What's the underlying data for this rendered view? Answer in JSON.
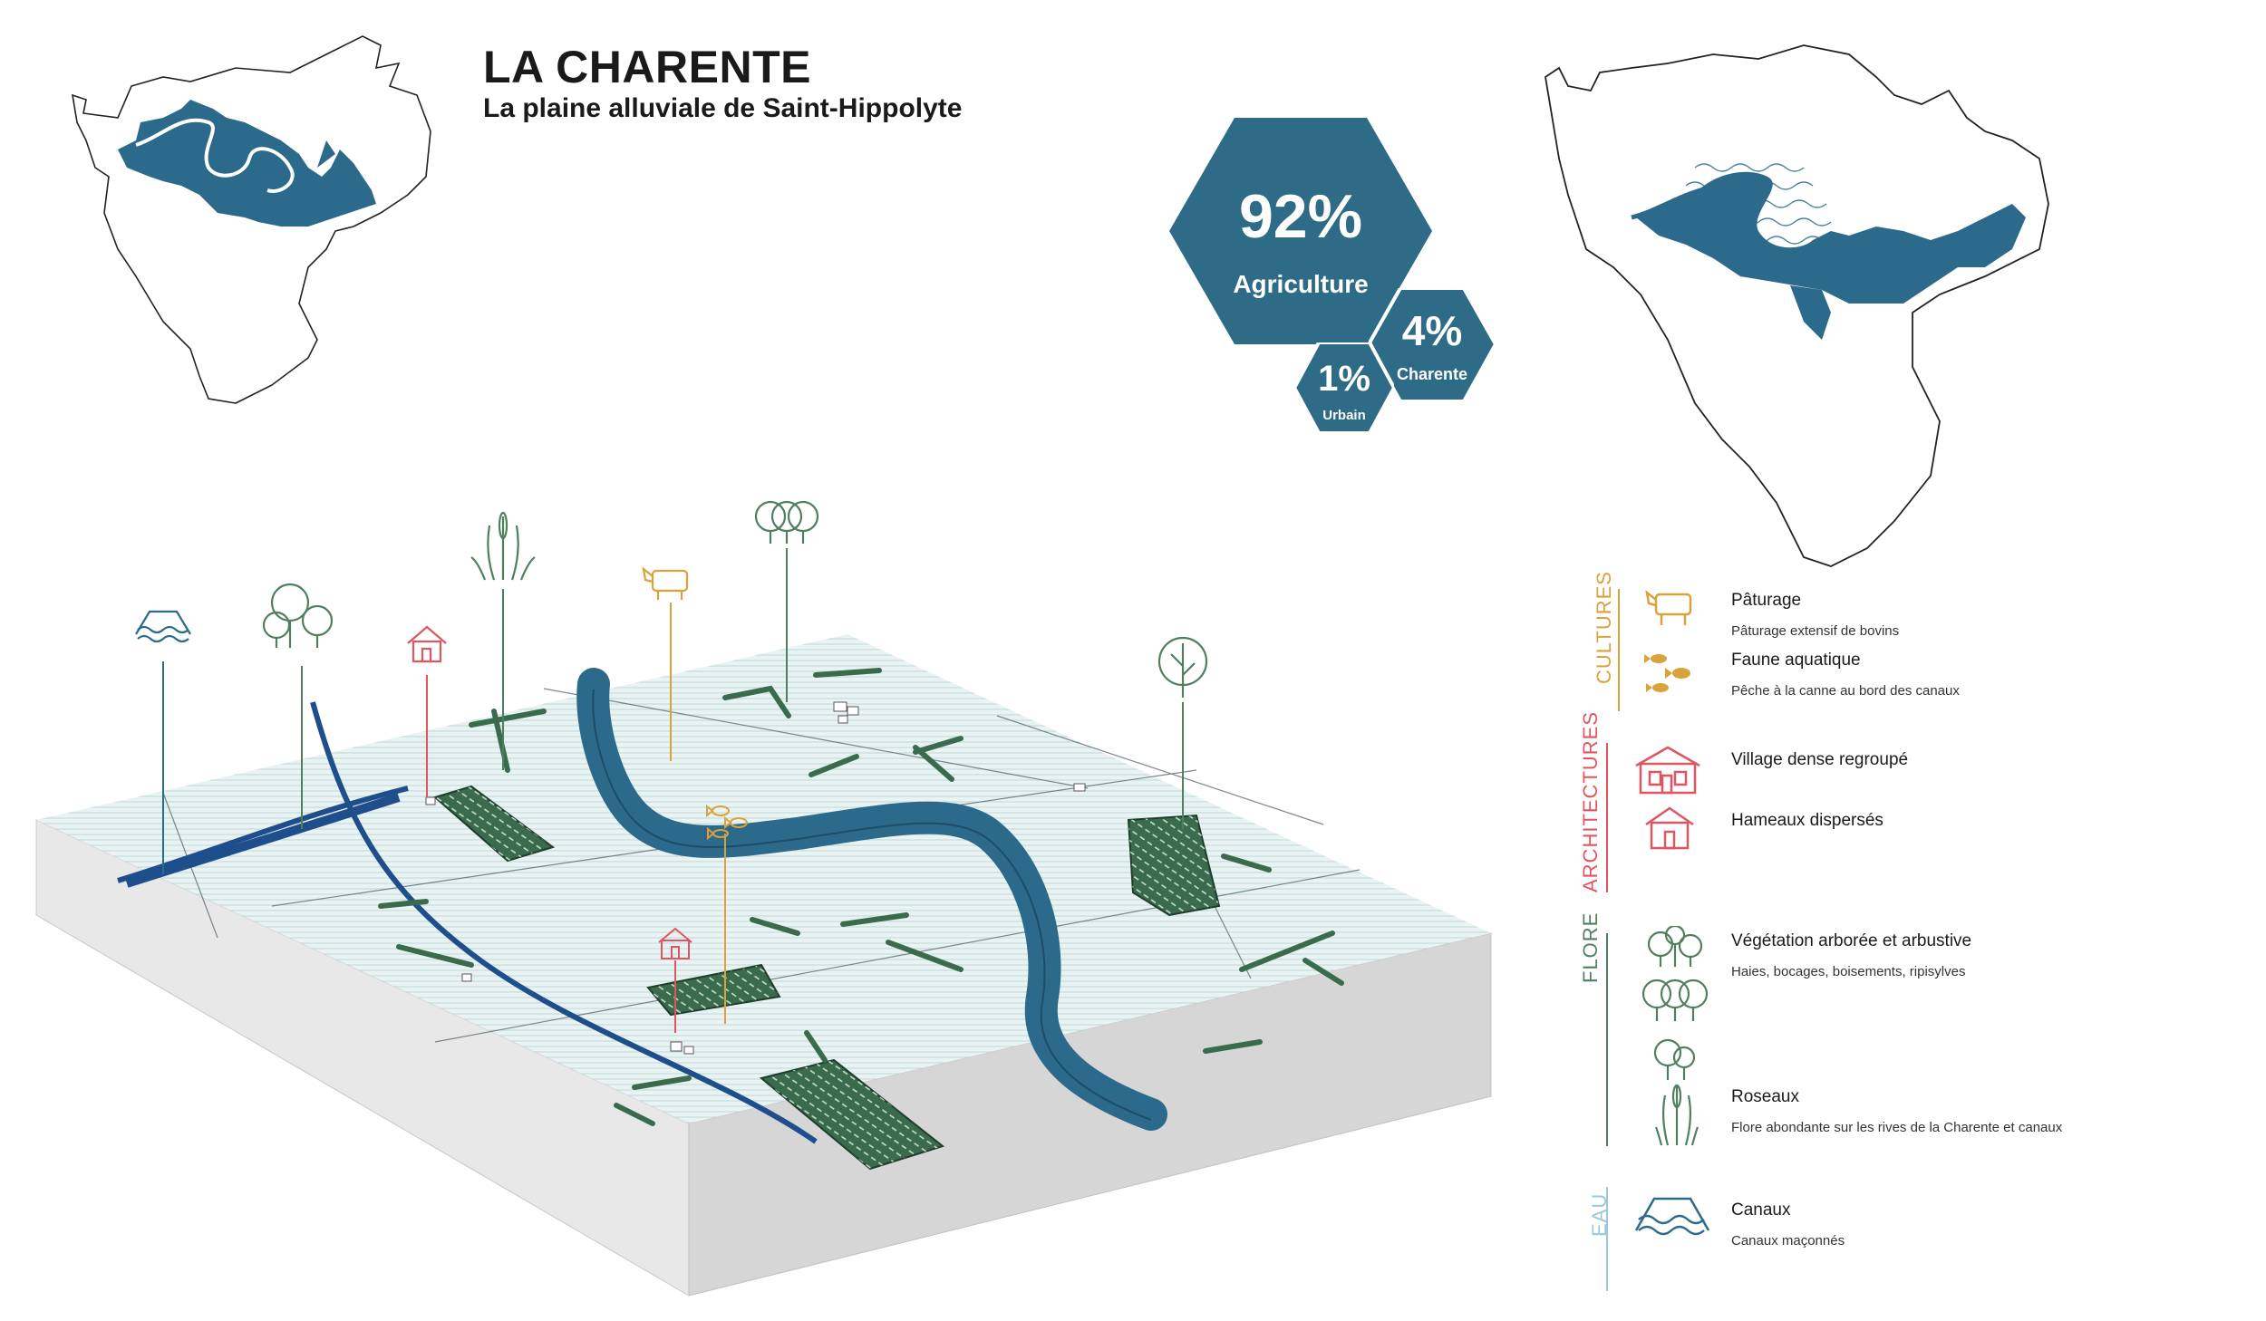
{
  "header": {
    "title": "LA CHARENTE",
    "subtitle": "La plaine alluviale de Saint-Hippolyte"
  },
  "stats": [
    {
      "value": "92%",
      "label": "Agriculture"
    },
    {
      "value": "4%",
      "label": "Charente"
    },
    {
      "value": "1%",
      "label": "Urbain"
    }
  ],
  "legend": {
    "categories": [
      {
        "name": "CULTURES",
        "color": "#d9a23a"
      },
      {
        "name": "ARCHITECTURES",
        "color": "#e05560"
      },
      {
        "name": "FLORE",
        "color": "#4f7f5f"
      },
      {
        "name": "EAU",
        "color": "#9cc7e0"
      }
    ],
    "items": [
      {
        "title": "Pâturage",
        "desc": "Pâturage extensif de bovins",
        "icon": "cow-icon"
      },
      {
        "title": "Faune aquatique",
        "desc": "Pêche à la canne au bord des canaux",
        "icon": "fish-icon"
      },
      {
        "title": "Village dense regroupé",
        "desc": "",
        "icon": "village-icon"
      },
      {
        "title": "Hameaux dispersés",
        "desc": "",
        "icon": "house-icon"
      },
      {
        "title": "Végétation arborée et arbustive",
        "desc": "Haies, bocages, boisements, ripisylves",
        "icon": "trees-icon"
      },
      {
        "title": "Roseaux",
        "desc": "Flore abondante sur les rives de la Charente et canaux",
        "icon": "reeds-icon"
      },
      {
        "title": "Canaux",
        "desc": "Canaux maçonnés",
        "icon": "canal-icon"
      }
    ]
  },
  "colors": {
    "river": "#2b6a8a",
    "canal": "#1f4e8c",
    "hex": "#2e6b86",
    "vegetation": "#3a6b4c",
    "field": "#dfeef0"
  }
}
